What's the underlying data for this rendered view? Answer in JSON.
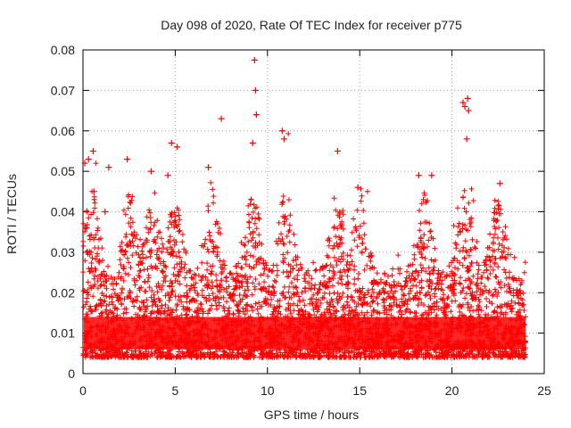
{
  "chart_data": {
    "type": "scatter",
    "title": "Day 098 of 2020, Rate Of TEC Index for receiver p775",
    "xlabel": "GPS time / hours",
    "ylabel": "ROTI / TECUs",
    "xlim": [
      0,
      25
    ],
    "ylim": [
      0,
      0.08
    ],
    "xticks": [
      0,
      5,
      10,
      15,
      20,
      25
    ],
    "yticks": [
      0,
      0.01,
      0.02,
      0.03,
      0.04,
      0.05,
      0.06,
      0.07,
      0.08
    ],
    "grid": true,
    "marker": "+",
    "series": [
      {
        "name": "ROTI",
        "color": "#ff0000",
        "points": [
          [
            0.1,
            0.052
          ],
          [
            0.3,
            0.053
          ],
          [
            0.55,
            0.055
          ],
          [
            0.6,
            0.045
          ],
          [
            1.4,
            0.051
          ],
          [
            2.4,
            0.053
          ],
          [
            3.7,
            0.05
          ],
          [
            4.6,
            0.049
          ],
          [
            4.8,
            0.057
          ],
          [
            5.1,
            0.056
          ],
          [
            6.8,
            0.051
          ],
          [
            7.5,
            0.063
          ],
          [
            9.3,
            0.0775
          ],
          [
            9.35,
            0.07
          ],
          [
            9.4,
            0.064
          ],
          [
            9.2,
            0.057
          ],
          [
            10.8,
            0.06
          ],
          [
            10.9,
            0.058
          ],
          [
            13.8,
            0.055
          ],
          [
            14.9,
            0.046
          ],
          [
            18.2,
            0.049
          ],
          [
            18.9,
            0.049
          ],
          [
            20.6,
            0.067
          ],
          [
            20.7,
            0.066
          ],
          [
            20.85,
            0.068
          ],
          [
            20.9,
            0.065
          ],
          [
            20.8,
            0.058
          ],
          [
            22.6,
            0.047
          ],
          [
            0.2,
            0.036
          ],
          [
            1.2,
            0.04
          ]
        ]
      }
    ],
    "seed_note": "dense background cloud between 0.005 and 0.035 TECU across 0-24 h"
  }
}
